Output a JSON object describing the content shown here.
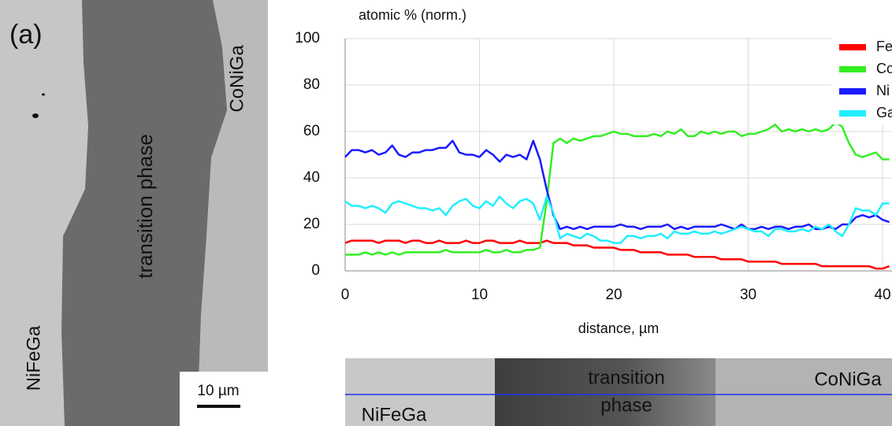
{
  "chart_data": {
    "type": "line",
    "title": "atomic % (norm.)",
    "x_label": "distance, µm",
    "x": [
      0,
      0.5,
      1,
      1.5,
      2,
      2.5,
      3,
      3.5,
      4,
      4.5,
      5,
      5.5,
      6,
      6.5,
      7,
      7.5,
      8,
      8.5,
      9,
      9.5,
      10,
      10.5,
      11,
      11.5,
      12,
      12.5,
      13,
      13.5,
      14,
      14.5,
      15,
      15.5,
      16,
      16.5,
      17,
      17.5,
      18,
      18.5,
      19,
      19.5,
      20,
      20.5,
      21,
      21.5,
      22,
      22.5,
      23,
      23.5,
      24,
      24.5,
      25,
      25.5,
      26,
      26.5,
      27,
      27.5,
      28,
      28.5,
      29,
      29.5,
      30,
      30.5,
      31,
      31.5,
      32,
      32.5,
      33,
      33.5,
      34,
      34.5,
      35,
      35.5,
      36,
      36.5,
      37,
      37.5,
      38,
      38.5,
      39,
      39.5,
      40,
      40.5
    ],
    "series": [
      {
        "name": "Fe Kα",
        "color": "#ff0000",
        "values": [
          12,
          13,
          13,
          13,
          13,
          12,
          13,
          13,
          13,
          12,
          13,
          13,
          12,
          12,
          13,
          12,
          12,
          12,
          13,
          12,
          12,
          13,
          13,
          12,
          12,
          12,
          13,
          12,
          12,
          12,
          13,
          12,
          12,
          12,
          11,
          11,
          11,
          10,
          10,
          10,
          10,
          9,
          9,
          9,
          8,
          8,
          8,
          8,
          7,
          7,
          7,
          7,
          6,
          6,
          6,
          6,
          5,
          5,
          5,
          5,
          4,
          4,
          4,
          4,
          4,
          3,
          3,
          3,
          3,
          3,
          3,
          2,
          2,
          2,
          2,
          2,
          2,
          2,
          2,
          1,
          1,
          2
        ]
      },
      {
        "name": "Co Kα",
        "color": "#33ee22",
        "values": [
          7,
          7,
          7,
          8,
          7,
          8,
          7,
          8,
          7,
          8,
          8,
          8,
          8,
          8,
          8,
          9,
          8,
          8,
          8,
          8,
          8,
          9,
          8,
          8,
          9,
          8,
          8,
          9,
          9,
          10,
          30,
          55,
          57,
          55,
          57,
          56,
          57,
          58,
          58,
          59,
          60,
          59,
          59,
          58,
          58,
          58,
          59,
          58,
          60,
          59,
          61,
          58,
          58,
          60,
          59,
          60,
          59,
          60,
          60,
          58,
          59,
          59,
          60,
          61,
          63,
          60,
          61,
          60,
          61,
          60,
          61,
          60,
          61,
          64,
          62,
          55,
          50,
          49,
          50,
          51,
          48,
          48
        ]
      },
      {
        "name": "Ni Kα",
        "color": "#1a1aff",
        "values": [
          49,
          52,
          52,
          51,
          52,
          50,
          51,
          54,
          50,
          49,
          51,
          51,
          52,
          52,
          53,
          53,
          56,
          51,
          50,
          50,
          49,
          52,
          50,
          47,
          50,
          49,
          50,
          48,
          56,
          48,
          35,
          24,
          18,
          19,
          18,
          19,
          18,
          19,
          19,
          19,
          19,
          20,
          19,
          19,
          18,
          19,
          19,
          19,
          20,
          18,
          19,
          18,
          19,
          19,
          19,
          19,
          20,
          19,
          18,
          20,
          18,
          18,
          19,
          18,
          19,
          19,
          18,
          19,
          19,
          20,
          18,
          18,
          19,
          18,
          20,
          20,
          23,
          24,
          23,
          24,
          22,
          21
        ]
      },
      {
        "name": "Ga Kα",
        "color": "#22eeff",
        "values": [
          30,
          28,
          28,
          27,
          28,
          27,
          25,
          29,
          30,
          29,
          28,
          27,
          27,
          26,
          27,
          24,
          28,
          30,
          31,
          28,
          27,
          30,
          28,
          32,
          29,
          27,
          30,
          31,
          29,
          22,
          32,
          25,
          14,
          16,
          15,
          14,
          16,
          15,
          13,
          13,
          12,
          12,
          15,
          15,
          14,
          15,
          15,
          16,
          14,
          17,
          16,
          16,
          17,
          16,
          16,
          17,
          16,
          17,
          18,
          19,
          18,
          17,
          17,
          15,
          18,
          18,
          17,
          17,
          18,
          17,
          19,
          18,
          20,
          17,
          15,
          20,
          27,
          26,
          26,
          24,
          29,
          29
        ]
      }
    ],
    "xlim": [
      0,
      40.7
    ],
    "xticks": [
      0,
      10,
      20,
      30,
      40
    ],
    "ylim": [
      0,
      100
    ],
    "yticks": [
      0,
      20,
      40,
      60,
      80,
      100
    ],
    "grid": true,
    "legend": "top-right"
  },
  "micrograph": {
    "panel_label": "(a)",
    "labels": [
      "transition phase",
      "CoNiGa",
      "NiFeGa"
    ],
    "scale_bar": "10 µm"
  },
  "line_scan": {
    "labels": [
      "transition",
      "phase",
      "CoNiGa",
      "NiFeGa"
    ]
  }
}
